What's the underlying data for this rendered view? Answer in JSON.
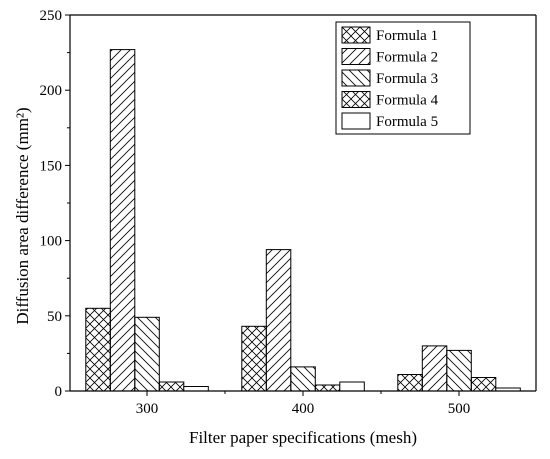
{
  "chart_data": {
    "type": "bar",
    "categories": [
      "300",
      "400",
      "500"
    ],
    "series": [
      {
        "name": "Formula 1",
        "values": [
          55,
          43,
          11
        ],
        "pattern": "crosshatch"
      },
      {
        "name": "Formula 2",
        "values": [
          227,
          94,
          30
        ],
        "pattern": "forward-diagonal"
      },
      {
        "name": "Formula 3",
        "values": [
          49,
          16,
          27
        ],
        "pattern": "backward-diagonal"
      },
      {
        "name": "Formula 4",
        "values": [
          6,
          4,
          9
        ],
        "pattern": "crosshatch"
      },
      {
        "name": "Formula 5",
        "values": [
          3,
          6,
          2
        ],
        "pattern": "none"
      }
    ],
    "xlabel": "Filter paper specifications (mesh)",
    "ylabel": "Diffusion area difference (mm²)",
    "ylim": [
      0,
      250
    ],
    "yticks": [
      "0",
      "50",
      "100",
      "150",
      "200",
      "250"
    ],
    "grid": false,
    "legend_position": "top-right",
    "colors": {
      "stroke": "#000000",
      "fill": "#ffffff"
    }
  }
}
